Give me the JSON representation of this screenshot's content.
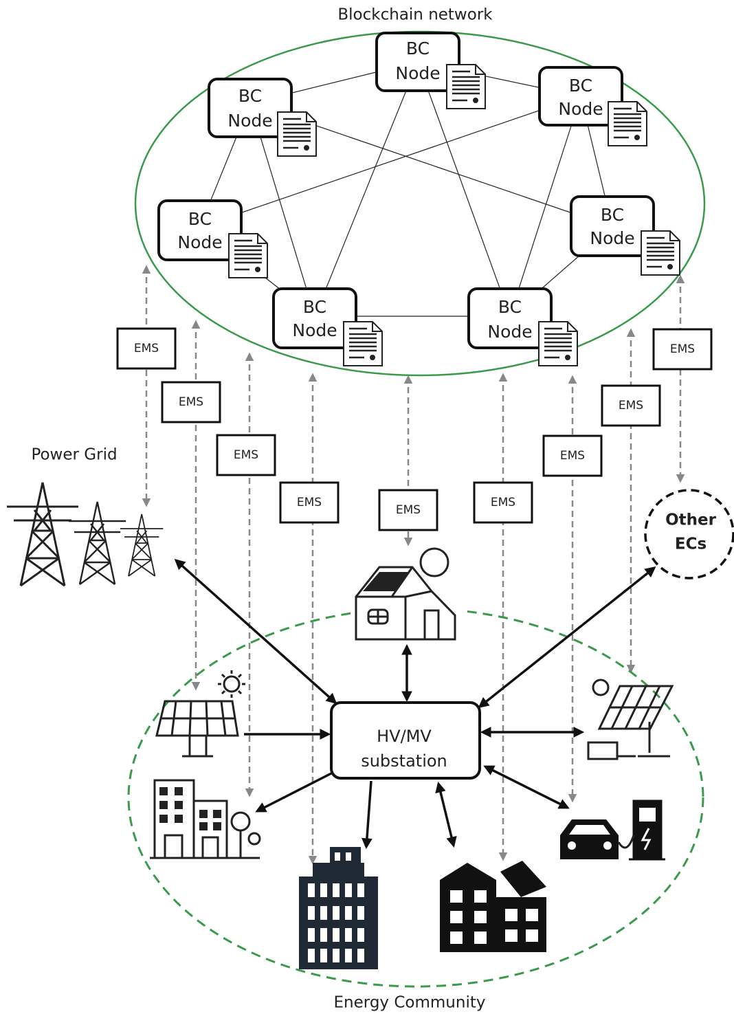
{
  "title": "Blockchain network",
  "nodes": [
    {
      "label": [
        "BC",
        "Node"
      ]
    },
    {
      "label": [
        "BC",
        "Node"
      ]
    },
    {
      "label": [
        "BC",
        "Node"
      ]
    },
    {
      "label": [
        "BC",
        "Node"
      ]
    },
    {
      "label": [
        "BC",
        "Node"
      ]
    },
    {
      "label": [
        "BC",
        "Node"
      ]
    },
    {
      "label": [
        "BC",
        "Node"
      ]
    }
  ],
  "ems": [
    "EMS",
    "EMS",
    "EMS",
    "EMS",
    "EMS",
    "EMS",
    "EMS",
    "EMS",
    "EMS"
  ],
  "power_grid": "Power Grid",
  "other_ecs": [
    "Other",
    "ECs"
  ],
  "substation": [
    "HV/MV",
    "substation"
  ],
  "community": "Energy Community"
}
